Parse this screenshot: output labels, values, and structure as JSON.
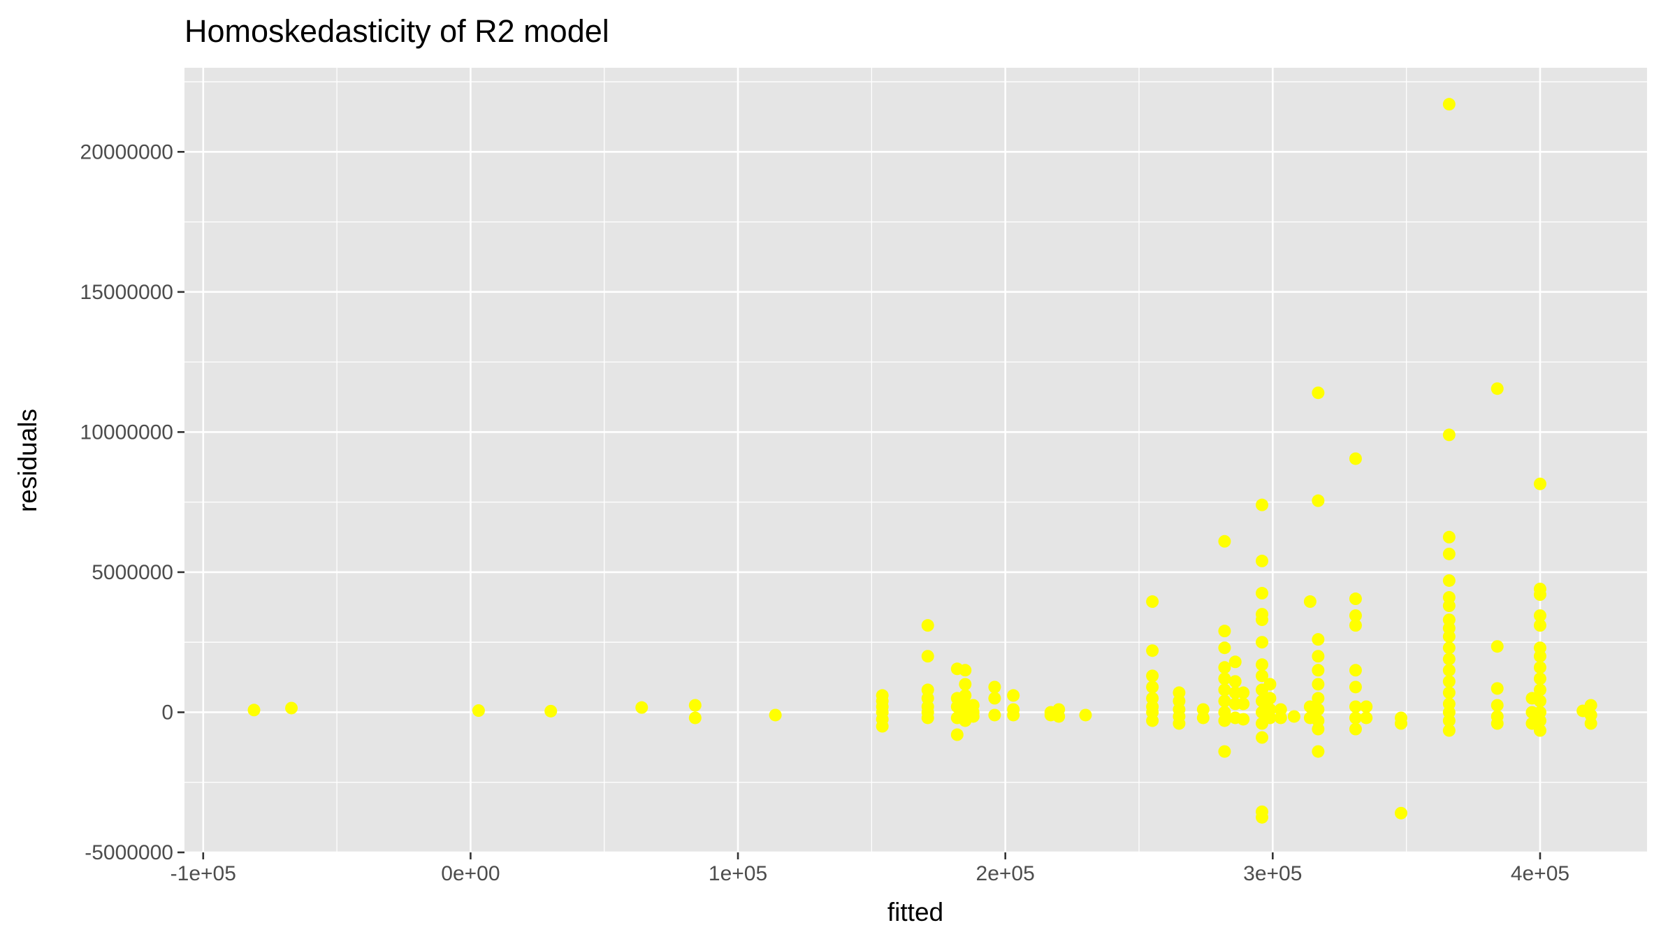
{
  "chart_data": {
    "type": "scatter",
    "title": "Homoskedasticity of R2 model",
    "xlabel": "fitted",
    "ylabel": "residuals",
    "xlim": [
      -107000,
      440000
    ],
    "ylim": [
      -5000000,
      23000000
    ],
    "x_ticks": [
      -100000,
      0,
      100000,
      200000,
      300000,
      400000
    ],
    "x_tick_labels": [
      "-1e+05",
      "0e+00",
      "1e+05",
      "2e+05",
      "3e+05",
      "4e+05"
    ],
    "y_ticks": [
      -5000000,
      0,
      5000000,
      10000000,
      15000000,
      20000000
    ],
    "y_tick_labels": [
      "-5000000",
      "0",
      "5000000",
      "10000000",
      "15000000",
      "20000000"
    ],
    "grid": true,
    "legend": "none",
    "point_color": "#ffff00",
    "points": [
      [
        -81000,
        80000
      ],
      [
        -67000,
        150000
      ],
      [
        3000,
        60000
      ],
      [
        30000,
        40000
      ],
      [
        64000,
        170000
      ],
      [
        84000,
        250000
      ],
      [
        84000,
        -200000
      ],
      [
        114000,
        -100000
      ],
      [
        154000,
        600000
      ],
      [
        154000,
        400000
      ],
      [
        154000,
        200000
      ],
      [
        154000,
        0
      ],
      [
        154000,
        -250000
      ],
      [
        154000,
        -500000
      ],
      [
        171000,
        3100000
      ],
      [
        171000,
        2000000
      ],
      [
        171000,
        800000
      ],
      [
        171000,
        500000
      ],
      [
        171000,
        200000
      ],
      [
        171000,
        0
      ],
      [
        171000,
        -200000
      ],
      [
        182000,
        1550000
      ],
      [
        182000,
        500000
      ],
      [
        182000,
        200000
      ],
      [
        182000,
        -200000
      ],
      [
        182000,
        -800000
      ],
      [
        185000,
        1500000
      ],
      [
        185000,
        1000000
      ],
      [
        185000,
        600000
      ],
      [
        185000,
        300000
      ],
      [
        185000,
        0
      ],
      [
        185000,
        -300000
      ],
      [
        188000,
        250000
      ],
      [
        188000,
        0
      ],
      [
        188000,
        -150000
      ],
      [
        196000,
        900000
      ],
      [
        196000,
        500000
      ],
      [
        196000,
        -100000
      ],
      [
        203000,
        600000
      ],
      [
        203000,
        100000
      ],
      [
        203000,
        -100000
      ],
      [
        217000,
        0
      ],
      [
        217000,
        -100000
      ],
      [
        220000,
        100000
      ],
      [
        220000,
        -150000
      ],
      [
        230000,
        -100000
      ],
      [
        255000,
        3950000
      ],
      [
        255000,
        2200000
      ],
      [
        255000,
        1300000
      ],
      [
        255000,
        900000
      ],
      [
        255000,
        500000
      ],
      [
        255000,
        200000
      ],
      [
        255000,
        0
      ],
      [
        255000,
        -300000
      ],
      [
        265000,
        700000
      ],
      [
        265000,
        400000
      ],
      [
        265000,
        100000
      ],
      [
        265000,
        -150000
      ],
      [
        265000,
        -400000
      ],
      [
        274000,
        100000
      ],
      [
        274000,
        -200000
      ],
      [
        282000,
        6100000
      ],
      [
        282000,
        2900000
      ],
      [
        282000,
        2300000
      ],
      [
        282000,
        1600000
      ],
      [
        282000,
        1200000
      ],
      [
        282000,
        800000
      ],
      [
        282000,
        400000
      ],
      [
        282000,
        0
      ],
      [
        282000,
        -300000
      ],
      [
        282000,
        -1400000
      ],
      [
        286000,
        1800000
      ],
      [
        286000,
        1100000
      ],
      [
        286000,
        700000
      ],
      [
        286000,
        300000
      ],
      [
        286000,
        -200000
      ],
      [
        289000,
        700000
      ],
      [
        289000,
        300000
      ],
      [
        289000,
        -250000
      ],
      [
        296000,
        7400000
      ],
      [
        296000,
        5400000
      ],
      [
        296000,
        4250000
      ],
      [
        296000,
        3500000
      ],
      [
        296000,
        3300000
      ],
      [
        296000,
        2500000
      ],
      [
        296000,
        1700000
      ],
      [
        296000,
        1300000
      ],
      [
        296000,
        800000
      ],
      [
        296000,
        400000
      ],
      [
        296000,
        0
      ],
      [
        296000,
        -400000
      ],
      [
        296000,
        -900000
      ],
      [
        296000,
        -3550000
      ],
      [
        296000,
        -3750000
      ],
      [
        299000,
        1000000
      ],
      [
        299000,
        500000
      ],
      [
        299000,
        100000
      ],
      [
        299000,
        -200000
      ],
      [
        303000,
        100000
      ],
      [
        303000,
        -200000
      ],
      [
        308000,
        -150000
      ],
      [
        314000,
        3950000
      ],
      [
        314000,
        200000
      ],
      [
        314000,
        -200000
      ],
      [
        317000,
        11400000
      ],
      [
        317000,
        7550000
      ],
      [
        317000,
        2600000
      ],
      [
        317000,
        2000000
      ],
      [
        317000,
        1500000
      ],
      [
        317000,
        1000000
      ],
      [
        317000,
        500000
      ],
      [
        317000,
        100000
      ],
      [
        317000,
        -300000
      ],
      [
        317000,
        -600000
      ],
      [
        317000,
        -1400000
      ],
      [
        331000,
        9050000
      ],
      [
        331000,
        4050000
      ],
      [
        331000,
        3450000
      ],
      [
        331000,
        3100000
      ],
      [
        331000,
        1500000
      ],
      [
        331000,
        900000
      ],
      [
        331000,
        200000
      ],
      [
        331000,
        -200000
      ],
      [
        331000,
        -600000
      ],
      [
        335000,
        200000
      ],
      [
        335000,
        -200000
      ],
      [
        348000,
        -200000
      ],
      [
        348000,
        -400000
      ],
      [
        348000,
        -3600000
      ],
      [
        366000,
        21700000
      ],
      [
        366000,
        9900000
      ],
      [
        366000,
        6250000
      ],
      [
        366000,
        5650000
      ],
      [
        366000,
        4700000
      ],
      [
        366000,
        4100000
      ],
      [
        366000,
        3800000
      ],
      [
        366000,
        3300000
      ],
      [
        366000,
        3000000
      ],
      [
        366000,
        2700000
      ],
      [
        366000,
        2300000
      ],
      [
        366000,
        1900000
      ],
      [
        366000,
        1500000
      ],
      [
        366000,
        1100000
      ],
      [
        366000,
        700000
      ],
      [
        366000,
        300000
      ],
      [
        366000,
        0
      ],
      [
        366000,
        -300000
      ],
      [
        366000,
        -650000
      ],
      [
        384000,
        11550000
      ],
      [
        384000,
        2350000
      ],
      [
        384000,
        850000
      ],
      [
        384000,
        250000
      ],
      [
        384000,
        -150000
      ],
      [
        384000,
        -400000
      ],
      [
        397000,
        500000
      ],
      [
        397000,
        0
      ],
      [
        397000,
        -400000
      ],
      [
        400000,
        8150000
      ],
      [
        400000,
        4400000
      ],
      [
        400000,
        4200000
      ],
      [
        400000,
        3450000
      ],
      [
        400000,
        3100000
      ],
      [
        400000,
        2300000
      ],
      [
        400000,
        2000000
      ],
      [
        400000,
        1600000
      ],
      [
        400000,
        1200000
      ],
      [
        400000,
        800000
      ],
      [
        400000,
        400000
      ],
      [
        400000,
        0
      ],
      [
        400000,
        -300000
      ],
      [
        400000,
        -650000
      ],
      [
        416000,
        50000
      ],
      [
        419000,
        250000
      ],
      [
        419000,
        -100000
      ],
      [
        419000,
        -400000
      ]
    ]
  }
}
